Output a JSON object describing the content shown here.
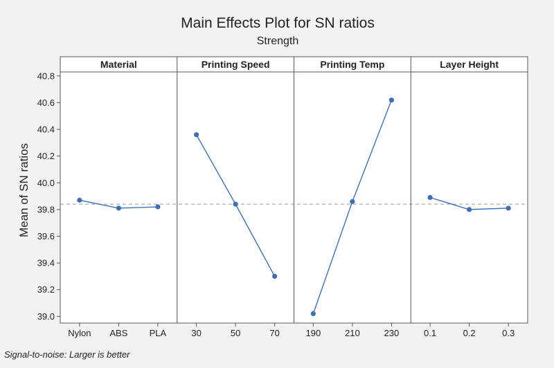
{
  "chart_data": {
    "type": "line",
    "title": "Main Effects Plot for SN ratios",
    "subtitle": "Strength",
    "ylabel": "Mean of SN ratios",
    "ylim": [
      38.95,
      40.83
    ],
    "yticks": [
      "39.0",
      "39.2",
      "39.4",
      "39.6",
      "39.8",
      "40.0",
      "40.2",
      "40.4",
      "40.6",
      "40.8"
    ],
    "reference_line": 39.84,
    "footnote": "Signal-to-noise: Larger is better",
    "colors": {
      "series": "#3f6fb5",
      "reference": "#999999",
      "frame": "#555555",
      "plot_bg": "#ffffff"
    },
    "panels": [
      {
        "name": "Material",
        "categories": [
          "Nylon",
          "ABS",
          "PLA"
        ],
        "values": [
          39.87,
          39.81,
          39.82
        ]
      },
      {
        "name": "Printing Speed",
        "categories": [
          "30",
          "50",
          "70"
        ],
        "values": [
          40.36,
          39.84,
          39.3
        ]
      },
      {
        "name": "Printing Temp",
        "categories": [
          "190",
          "210",
          "230"
        ],
        "values": [
          39.02,
          39.86,
          40.62
        ]
      },
      {
        "name": "Layer Height",
        "categories": [
          "0.1",
          "0.2",
          "0.3"
        ],
        "values": [
          39.89,
          39.8,
          39.81
        ]
      }
    ]
  }
}
